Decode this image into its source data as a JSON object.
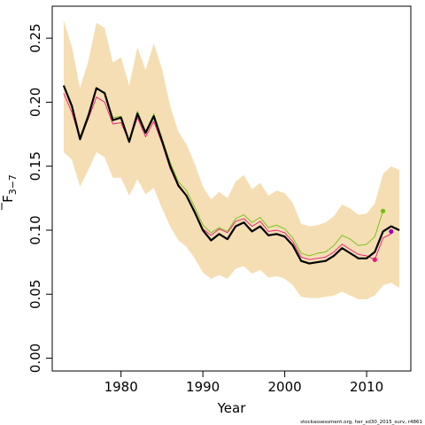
{
  "chart_data": {
    "type": "line",
    "title": "",
    "xlabel": "Year",
    "ylabel": "F",
    "ylabel_subscript": "3−7",
    "caption": "stockassessment.org, her_sd30_2015_surv, r4861",
    "xlim": [
      1971.6,
      2015.4
    ],
    "ylim": [
      -0.01,
      0.275
    ],
    "x_ticks": [
      1980,
      1990,
      2000,
      2010
    ],
    "y_ticks": [
      0.0,
      0.05,
      0.1,
      0.15,
      0.2,
      0.25
    ],
    "y_tick_labels": [
      "0.00",
      "0.05",
      "0.10",
      "0.15",
      "0.20",
      "0.25"
    ],
    "grid": false,
    "colors": {
      "band": "#f5deb3",
      "main": "#000000",
      "series_pink": "#e8187a",
      "series_green": "#6ec010",
      "series_magenta": "#a000b0"
    },
    "years": [
      1973,
      1974,
      1975,
      1976,
      1977,
      1978,
      1979,
      1980,
      1981,
      1982,
      1983,
      1984,
      1985,
      1986,
      1987,
      1988,
      1989,
      1990,
      1991,
      1992,
      1993,
      1994,
      1995,
      1996,
      1997,
      1998,
      1999,
      2000,
      2001,
      2002,
      2003,
      2004,
      2005,
      2006,
      2007,
      2008,
      2009,
      2010,
      2011,
      2012,
      2013,
      2014
    ],
    "band_upper": [
      0.264,
      0.243,
      0.211,
      0.232,
      0.262,
      0.258,
      0.231,
      0.235,
      0.213,
      0.243,
      0.225,
      0.246,
      0.226,
      0.197,
      0.177,
      0.167,
      0.152,
      0.134,
      0.124,
      0.13,
      0.125,
      0.138,
      0.143,
      0.132,
      0.137,
      0.127,
      0.131,
      0.129,
      0.121,
      0.105,
      0.103,
      0.104,
      0.106,
      0.111,
      0.12,
      0.117,
      0.112,
      0.113,
      0.121,
      0.144,
      0.15,
      0.147
    ],
    "band_lower": [
      0.161,
      0.155,
      0.134,
      0.147,
      0.161,
      0.157,
      0.141,
      0.141,
      0.127,
      0.14,
      0.128,
      0.133,
      0.117,
      0.103,
      0.092,
      0.087,
      0.078,
      0.067,
      0.062,
      0.065,
      0.062,
      0.07,
      0.072,
      0.066,
      0.069,
      0.063,
      0.064,
      0.062,
      0.057,
      0.048,
      0.047,
      0.047,
      0.048,
      0.049,
      0.052,
      0.049,
      0.046,
      0.046,
      0.049,
      0.057,
      0.059,
      0.055
    ],
    "series": [
      {
        "values": [
          0.213,
          0.197,
          0.171,
          0.189,
          0.211,
          0.207,
          0.186,
          0.188,
          0.169,
          0.191,
          0.176,
          0.189,
          0.17,
          0.15,
          0.135,
          0.127,
          0.114,
          0.1,
          0.092,
          0.097,
          0.093,
          0.103,
          0.106,
          0.099,
          0.103,
          0.096,
          0.097,
          0.095,
          0.088,
          0.076,
          0.074,
          0.075,
          0.076,
          0.08,
          0.086,
          0.082,
          0.078,
          0.078,
          0.083,
          0.099,
          0.103,
          0.1
        ],
        "color": "#000000",
        "width": 2.2
      },
      {
        "values": [
          0.207,
          0.192,
          0.171,
          0.187,
          0.204,
          0.2,
          0.183,
          0.184,
          0.169,
          0.188,
          0.173,
          0.185,
          0.168,
          0.148,
          0.134,
          0.127,
          0.115,
          0.101,
          0.096,
          0.101,
          0.098,
          0.107,
          0.109,
          0.103,
          0.107,
          0.099,
          0.1,
          0.098,
          0.091,
          0.079,
          0.077,
          0.078,
          0.079,
          0.083,
          0.089,
          0.085,
          0.081,
          0.08,
          0.077,
          0.094,
          0.097,
          null
        ],
        "color": "#e8187a",
        "width": 0.9
      },
      {
        "values": [
          0.213,
          0.196,
          0.173,
          0.191,
          0.21,
          0.208,
          0.188,
          0.189,
          0.17,
          0.193,
          0.177,
          0.191,
          0.172,
          0.153,
          0.138,
          0.131,
          0.118,
          0.104,
          0.098,
          0.102,
          0.099,
          0.109,
          0.112,
          0.106,
          0.11,
          0.102,
          0.104,
          0.101,
          0.094,
          0.082,
          0.08,
          0.082,
          0.083,
          0.088,
          0.096,
          0.093,
          0.088,
          0.089,
          0.095,
          0.115,
          null,
          null
        ],
        "color": "#6ec010",
        "width": 0.9
      }
    ],
    "endpoint_markers": [
      {
        "x": 2011,
        "y": 0.077,
        "color": "#e8187a"
      },
      {
        "x": 2012,
        "y": 0.115,
        "color": "#6ec010"
      },
      {
        "x": 2013,
        "y": 0.099,
        "color": "#a000b0"
      }
    ]
  }
}
